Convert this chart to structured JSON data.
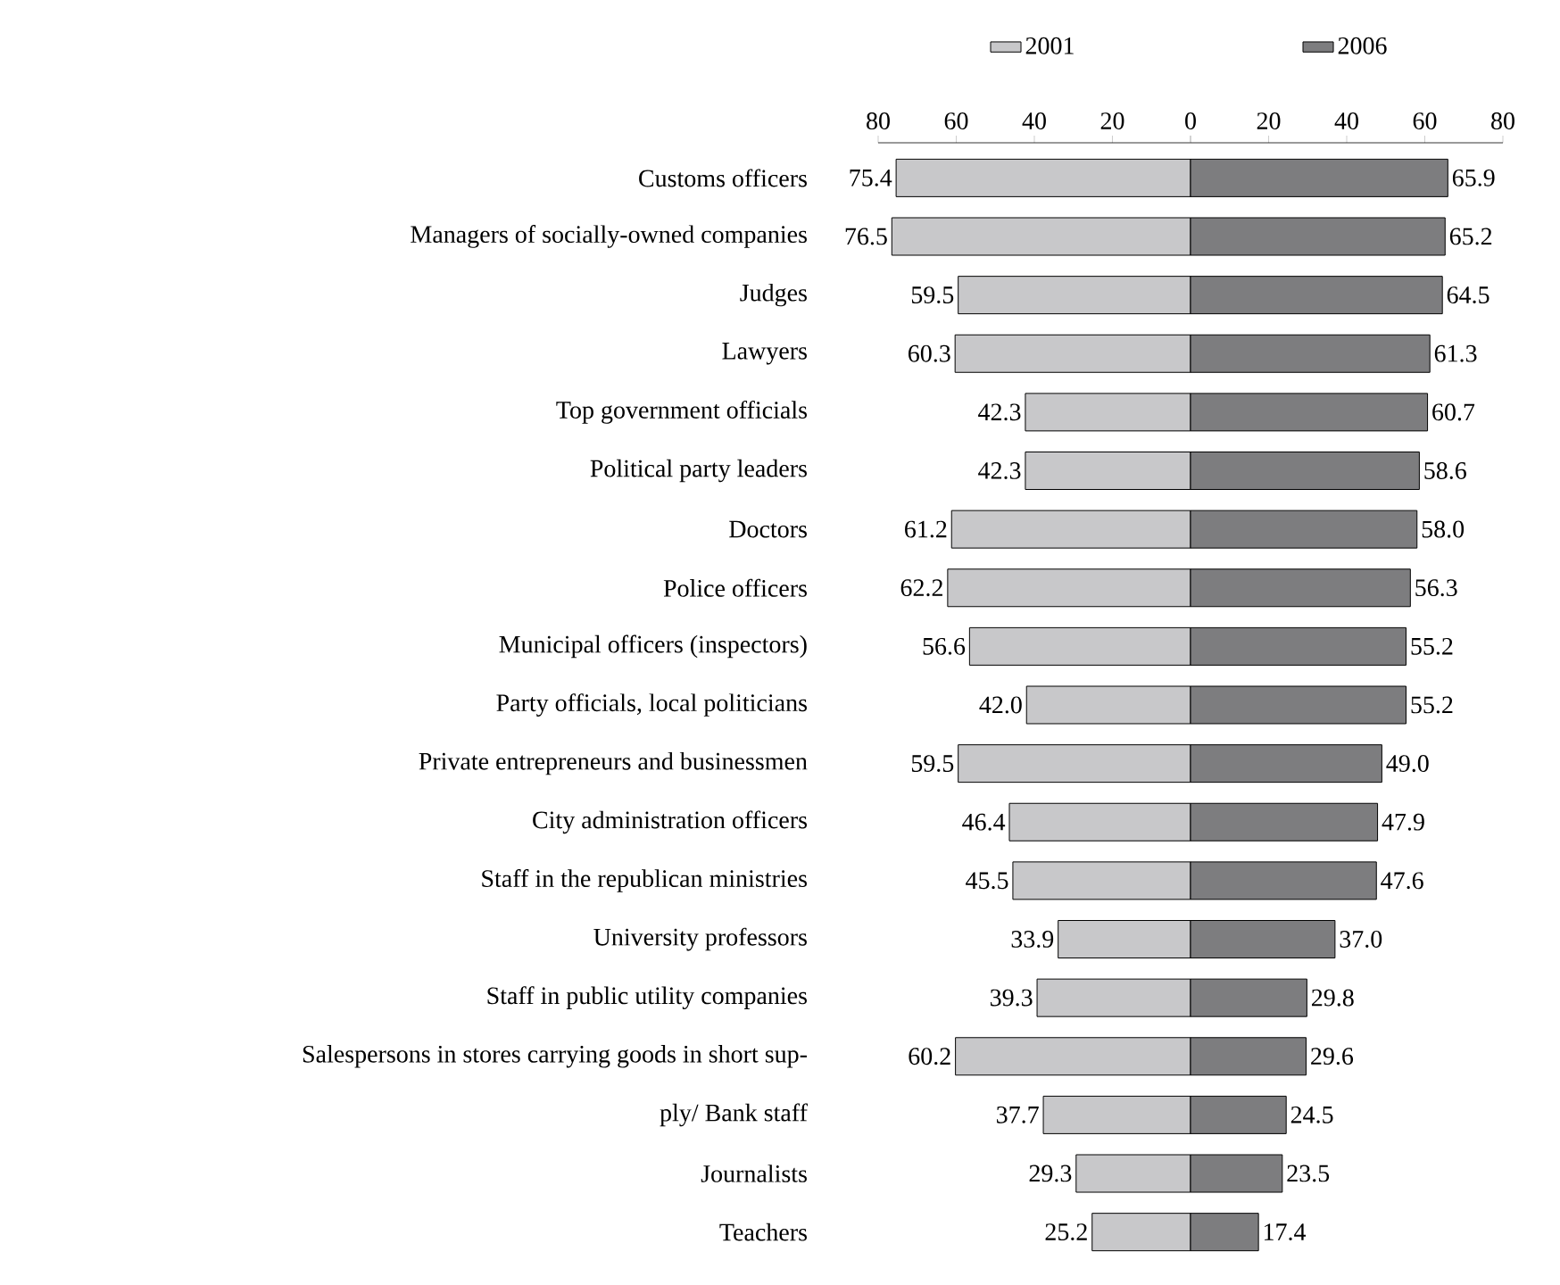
{
  "chart_data": [
    {
      "type": "bar",
      "orientation": "horizontal",
      "legend": "top",
      "categories": [
        "Customs officers",
        "Managers of socially-owned companies",
        "Judges",
        "Lawyers",
        "Top government officials",
        "Political party leaders",
        "Doctors",
        "Police officers",
        "Municipal officers (inspectors)",
        "Party officials, local politicians",
        "Private entrepreneurs and businessmen",
        "City administration officers",
        "Staff in the republican ministries",
        "University professors",
        "Staff in public utility companies",
        "Salespersons in stores carrying goods in short sup-",
        "ply/ Bank staff",
        "Journalists",
        "Teachers"
      ],
      "series": [
        {
          "name": "2001",
          "color": "#c8c8ca",
          "values": [
            75.4,
            76.5,
            59.5,
            60.3,
            42.3,
            42.3,
            61.2,
            62.2,
            56.6,
            42.0,
            59.5,
            46.4,
            45.5,
            33.9,
            39.3,
            60.2,
            37.7,
            29.3,
            25.2
          ]
        }
      ],
      "value_labels": [
        "75.4",
        "76.5",
        "59.5",
        "60.3",
        "42.3",
        "42.3",
        "61.2",
        "62.2",
        "56.6",
        "42.0",
        "59.5",
        "46.4",
        "45.5",
        "33.9",
        "39.3",
        "60.2",
        "37.7",
        "29.3",
        "25.2"
      ],
      "xlim": [
        80,
        0
      ],
      "xticks": [
        80,
        60,
        40,
        20,
        {
          "value": 0,
          "label": null
        }
      ]
    },
    {
      "type": "bar",
      "orientation": "horizontal",
      "legend": "top",
      "tick_labels": "x",
      "categories": [
        null,
        null,
        null,
        null,
        null,
        null,
        null,
        null,
        null,
        null,
        null,
        null,
        null,
        null,
        null,
        null,
        null,
        null,
        null
      ],
      "series": [
        {
          "name": "2006",
          "color": "#7d7d7f",
          "values": [
            65.9,
            65.2,
            64.5,
            61.3,
            60.7,
            58.6,
            58.0,
            56.3,
            55.2,
            55.2,
            49.0,
            47.9,
            47.6,
            37.0,
            29.8,
            29.6,
            24.5,
            23.5,
            17.4
          ]
        }
      ],
      "value_labels": [
        "65.9",
        "65.2",
        "64.5",
        "61.3",
        "60.7",
        "58.6",
        "58.0",
        "56.3",
        "55.2",
        "55.2",
        "49.0",
        "47.9",
        "47.6",
        "37.0",
        "29.8",
        "29.6",
        "24.5",
        "23.5",
        "17.4"
      ],
      "xlim": [
        0,
        80
      ],
      "xticks": [
        0,
        20,
        40,
        60,
        80
      ]
    }
  ]
}
